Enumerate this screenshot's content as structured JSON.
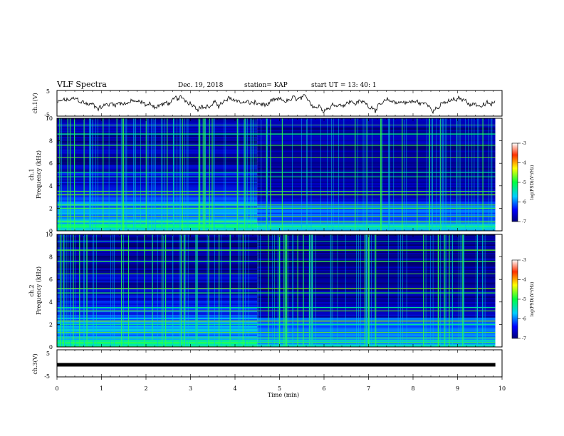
{
  "header": {
    "title": "VLF Spectra",
    "date": "Dec. 19, 2018",
    "station": "station= KAP",
    "start": "start  UT =   13: 40: 1"
  },
  "colors": {
    "frame": "#000000",
    "spectrogram_low": "#000060",
    "spectrogram_mid": "#00ff00",
    "spectrogram_high": "#ff0000"
  },
  "chart_data": [
    {
      "type": "line",
      "name": "ch1-waveform",
      "ylabel": "ch.1(V)",
      "ylim": [
        -5,
        5
      ],
      "yticks": [
        "5",
        "-5"
      ],
      "xlim": [
        0,
        10
      ],
      "x_extent": [
        0,
        9.85
      ]
    },
    {
      "type": "heatmap",
      "name": "ch1-spectrogram",
      "ylabel": "ch.1\nFrequency (kHz)",
      "ylim": [
        0,
        10
      ],
      "yticks": [
        "0",
        "2",
        "4",
        "6",
        "8",
        "10"
      ],
      "xlim": [
        0,
        10
      ],
      "x_extent": [
        0,
        9.85
      ],
      "colorbar": {
        "label": "log(PSD)(V²/Hz)",
        "range": [
          -7,
          -3
        ],
        "ticks": [
          "-3",
          "-4",
          "-5",
          "-6",
          "-7"
        ]
      },
      "level_change_time_min": 4.5
    },
    {
      "type": "heatmap",
      "name": "ch2-spectrogram",
      "ylabel": "ch.2\nFrequency (kHz)",
      "ylim": [
        0,
        10
      ],
      "yticks": [
        "0",
        "2",
        "4",
        "6",
        "8",
        "10"
      ],
      "xlim": [
        0,
        10
      ],
      "x_extent": [
        0,
        9.85
      ],
      "colorbar": {
        "label": "log(PSD)(V²/Hz)",
        "range": [
          -7,
          -3
        ],
        "ticks": [
          "-3",
          "-4",
          "-5",
          "-6",
          "-7"
        ]
      },
      "level_change_time_min": 4.5
    },
    {
      "type": "line",
      "name": "ch3-waveform",
      "ylabel": "ch.3(V)",
      "ylim": [
        -5,
        5
      ],
      "yticks": [
        "5",
        "-5"
      ],
      "x": [
        0,
        9.85
      ],
      "y": [
        0,
        0
      ]
    }
  ],
  "xaxis": {
    "label": "Time  (min)",
    "ticks": [
      "0",
      "1",
      "2",
      "3",
      "4",
      "5",
      "6",
      "7",
      "8",
      "9",
      "10"
    ]
  }
}
